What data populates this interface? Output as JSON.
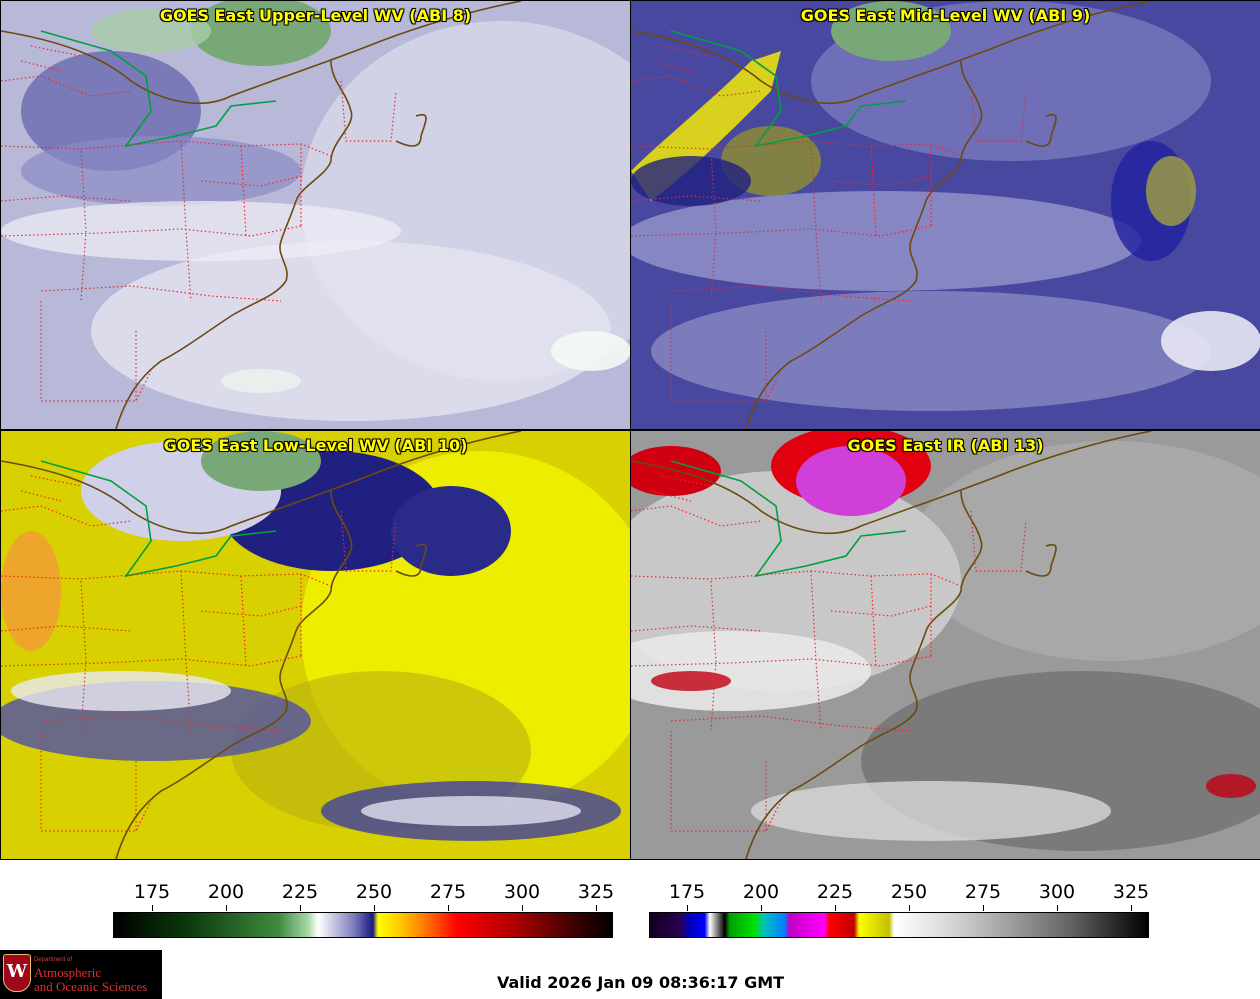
{
  "panels": [
    {
      "title": "GOES East Upper-Level WV (ABI 8)"
    },
    {
      "title": "GOES East Mid-Level WV (ABI 9)"
    },
    {
      "title": "GOES East Low-Level WV (ABI 10)"
    },
    {
      "title": "GOES East IR (ABI 13)"
    }
  ],
  "colorbars": {
    "wv": {
      "ticks": [
        "175",
        "200",
        "225",
        "250",
        "275",
        "300",
        "325"
      ]
    },
    "ir": {
      "ticks": [
        "175",
        "200",
        "225",
        "250",
        "275",
        "300",
        "325"
      ]
    }
  },
  "logo": {
    "department": "Department of",
    "line1": "Atmospheric",
    "line2": "and Oceanic Sciences",
    "shield_letter": "W"
  },
  "valid_time": "Valid 2026 Jan 09 08:36:17 GMT",
  "colors": {
    "title_text": "#ffff00",
    "state_borders": "#ff2020",
    "coastlines": "#6b4a10",
    "great_lakes_border": "#00a040"
  }
}
